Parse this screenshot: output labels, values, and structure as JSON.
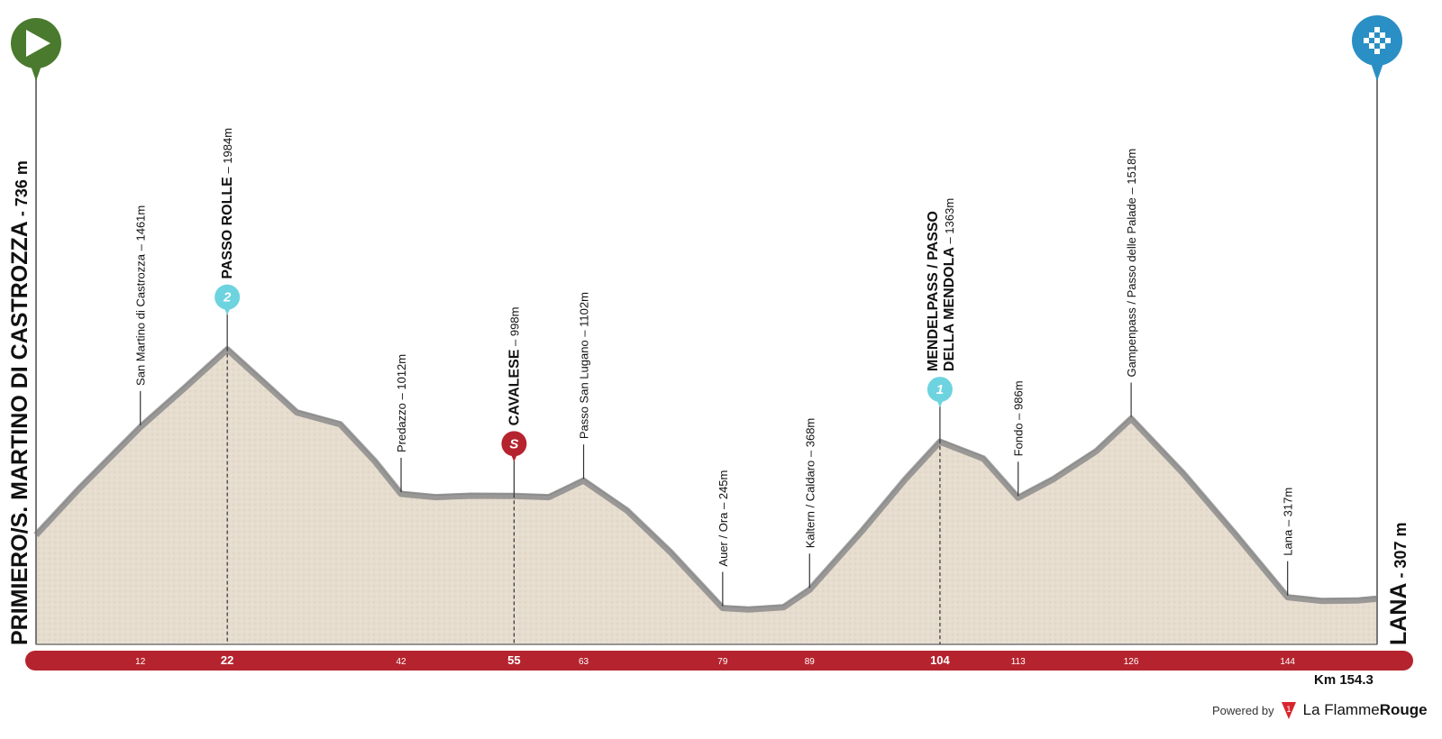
{
  "start": {
    "name": "PRIMIERO/S. MARTINO DI CASTROZZA",
    "altitude": "736 m",
    "icon": "play-icon",
    "color": "#4a7a2e"
  },
  "finish": {
    "name": "LANA",
    "altitude": "307 m",
    "icon": "checkered-flag-icon",
    "color": "#2a8fc4"
  },
  "footer": {
    "distance": "Km 154.3",
    "powered_by": "Powered by",
    "brand_a": "La Flamme",
    "brand_b": "Rouge"
  },
  "chart_data": {
    "type": "area",
    "xlabel": "",
    "ylabel": "",
    "xlim": [
      0,
      154.3
    ],
    "profile": [
      [
        0,
        736
      ],
      [
        5,
        1050
      ],
      [
        12,
        1461
      ],
      [
        17,
        1720
      ],
      [
        22,
        1984
      ],
      [
        27,
        1720
      ],
      [
        30,
        1560
      ],
      [
        35,
        1480
      ],
      [
        39,
        1230
      ],
      [
        42,
        1012
      ],
      [
        46,
        990
      ],
      [
        50,
        1000
      ],
      [
        55,
        998
      ],
      [
        59,
        990
      ],
      [
        63,
        1102
      ],
      [
        68,
        900
      ],
      [
        73,
        620
      ],
      [
        79,
        245
      ],
      [
        82,
        235
      ],
      [
        86,
        250
      ],
      [
        89,
        368
      ],
      [
        95,
        760
      ],
      [
        100,
        1110
      ],
      [
        104,
        1363
      ],
      [
        109,
        1250
      ],
      [
        113,
        986
      ],
      [
        117,
        1110
      ],
      [
        122,
        1300
      ],
      [
        126,
        1518
      ],
      [
        132,
        1150
      ],
      [
        138,
        740
      ],
      [
        144,
        317
      ],
      [
        148,
        292
      ],
      [
        152,
        295
      ],
      [
        154.3,
        307
      ]
    ],
    "ticks": [
      {
        "km": 12,
        "label": "12",
        "bold": false
      },
      {
        "km": 22,
        "label": "22",
        "bold": true
      },
      {
        "km": 42,
        "label": "42",
        "bold": false
      },
      {
        "km": 55,
        "label": "55",
        "bold": true
      },
      {
        "km": 63,
        "label": "63",
        "bold": false
      },
      {
        "km": 79,
        "label": "79",
        "bold": false
      },
      {
        "km": 89,
        "label": "89",
        "bold": false
      },
      {
        "km": 104,
        "label": "104",
        "bold": true
      },
      {
        "km": 113,
        "label": "113",
        "bold": false
      },
      {
        "km": 126,
        "label": "126",
        "bold": false
      },
      {
        "km": 144,
        "label": "144",
        "bold": false
      }
    ],
    "points": [
      {
        "km": 12,
        "name": "San Martino di Castrozza",
        "elev": "1461m",
        "bold": false
      },
      {
        "km": 22,
        "name": "PASSO ROLLE",
        "elev": "1984m",
        "bold": true,
        "badge": "2",
        "badge_color": "#6dd3df"
      },
      {
        "km": 42,
        "name": "Predazzo",
        "elev": "1012m",
        "bold": false
      },
      {
        "km": 55,
        "name": "CAVALESE",
        "elev": "998m",
        "bold": true,
        "badge": "S",
        "badge_color": "#b5242e"
      },
      {
        "km": 63,
        "name": "Passo San Lugano",
        "elev": "1102m",
        "bold": false
      },
      {
        "km": 79,
        "name": "Auer / Ora",
        "elev": "245m",
        "bold": false
      },
      {
        "km": 89,
        "name": "Kaltern / Caldaro",
        "elev": "368m",
        "bold": false
      },
      {
        "km": 104,
        "name": "MENDELPASS / PASSO",
        "name2": "DELLA MENDOLA",
        "elev": "1363m",
        "bold": true,
        "badge": "1",
        "badge_color": "#6dd3df"
      },
      {
        "km": 113,
        "name": "Fondo",
        "elev": "986m",
        "bold": false
      },
      {
        "km": 126,
        "name": "Gampenpass / Passo delle Palade",
        "elev": "1518m",
        "bold": false
      },
      {
        "km": 144,
        "name": "Lana",
        "elev": "317m",
        "bold": false
      }
    ],
    "colors": {
      "terrain": "#e6ddcf",
      "ridge": "#8c8c8c",
      "bar": "#b5242e"
    }
  }
}
